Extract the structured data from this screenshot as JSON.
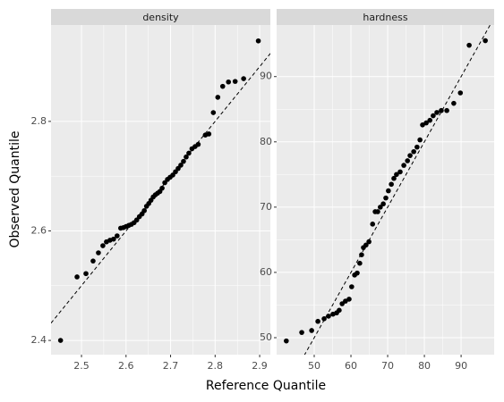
{
  "chart_data": {
    "type": "scatter",
    "xlabel": "Reference Quantile",
    "ylabel": "Observed Quantile",
    "point_color": "#000000",
    "facets": [
      {
        "title": "density",
        "xlim": [
          2.4316,
          2.924
        ],
        "ylim": [
          2.374,
          2.976
        ],
        "xticks": [
          2.5,
          2.6,
          2.7,
          2.8,
          2.9
        ],
        "yticks": [
          2.4,
          2.6,
          2.8
        ],
        "reference_line": {
          "intercept": 0,
          "slope": 1
        },
        "x": [
          2.453,
          2.49,
          2.51,
          2.526,
          2.538,
          2.548,
          2.556,
          2.564,
          2.572,
          2.58,
          2.588,
          2.594,
          2.6,
          2.606,
          2.612,
          2.618,
          2.624,
          2.63,
          2.636,
          2.641,
          2.646,
          2.651,
          2.656,
          2.661,
          2.666,
          2.671,
          2.676,
          2.681,
          2.687,
          2.693,
          2.699,
          2.705,
          2.711,
          2.717,
          2.723,
          2.729,
          2.735,
          2.741,
          2.748,
          2.755,
          2.762,
          2.778,
          2.786,
          2.796,
          2.806,
          2.817,
          2.83,
          2.845,
          2.864,
          2.897
        ],
        "y": [
          2.4,
          2.516,
          2.522,
          2.545,
          2.56,
          2.573,
          2.58,
          2.583,
          2.585,
          2.591,
          2.605,
          2.606,
          2.608,
          2.61,
          2.612,
          2.615,
          2.62,
          2.626,
          2.631,
          2.637,
          2.645,
          2.65,
          2.656,
          2.662,
          2.666,
          2.669,
          2.672,
          2.678,
          2.688,
          2.694,
          2.698,
          2.702,
          2.708,
          2.714,
          2.72,
          2.727,
          2.735,
          2.742,
          2.75,
          2.754,
          2.758,
          2.775,
          2.777,
          2.816,
          2.844,
          2.864,
          2.872,
          2.873,
          2.878,
          2.947
        ]
      },
      {
        "title": "hardness",
        "xlim": [
          39.76,
          99.0
        ],
        "ylim": [
          47.4,
          97.9
        ],
        "xticks": [
          50,
          60,
          70,
          80,
          90
        ],
        "yticks": [
          50,
          60,
          70,
          80,
          90
        ],
        "reference_line": {
          "intercept": 0,
          "slope": 1
        },
        "x": [
          42.4,
          46.6,
          49.3,
          51.0,
          52.7,
          53.9,
          55.1,
          56.1,
          56.8,
          57.6,
          58.5,
          59.5,
          60.2,
          61.0,
          61.7,
          62.4,
          62.9,
          63.4,
          64.1,
          64.9,
          65.9,
          66.6,
          67.3,
          68.0,
          68.8,
          69.5,
          70.2,
          71.0,
          71.7,
          72.4,
          73.4,
          74.4,
          75.4,
          76.1,
          77.1,
          78.0,
          78.8,
          79.5,
          80.5,
          81.5,
          82.4,
          83.4,
          84.6,
          86.1,
          88.0,
          89.8,
          92.2,
          96.6
        ],
        "y": [
          49.5,
          50.8,
          51.1,
          52.5,
          52.9,
          53.3,
          53.6,
          53.8,
          54.2,
          55.2,
          55.6,
          55.9,
          57.8,
          59.6,
          59.9,
          61.4,
          62.7,
          63.8,
          64.2,
          64.7,
          67.4,
          69.3,
          69.3,
          70.0,
          70.5,
          71.4,
          72.5,
          73.5,
          74.4,
          75.0,
          75.4,
          76.4,
          77.1,
          77.9,
          78.5,
          79.2,
          80.3,
          82.6,
          82.9,
          83.3,
          84.0,
          84.5,
          84.8,
          84.8,
          85.9,
          87.5,
          94.8,
          95.5
        ]
      }
    ]
  }
}
